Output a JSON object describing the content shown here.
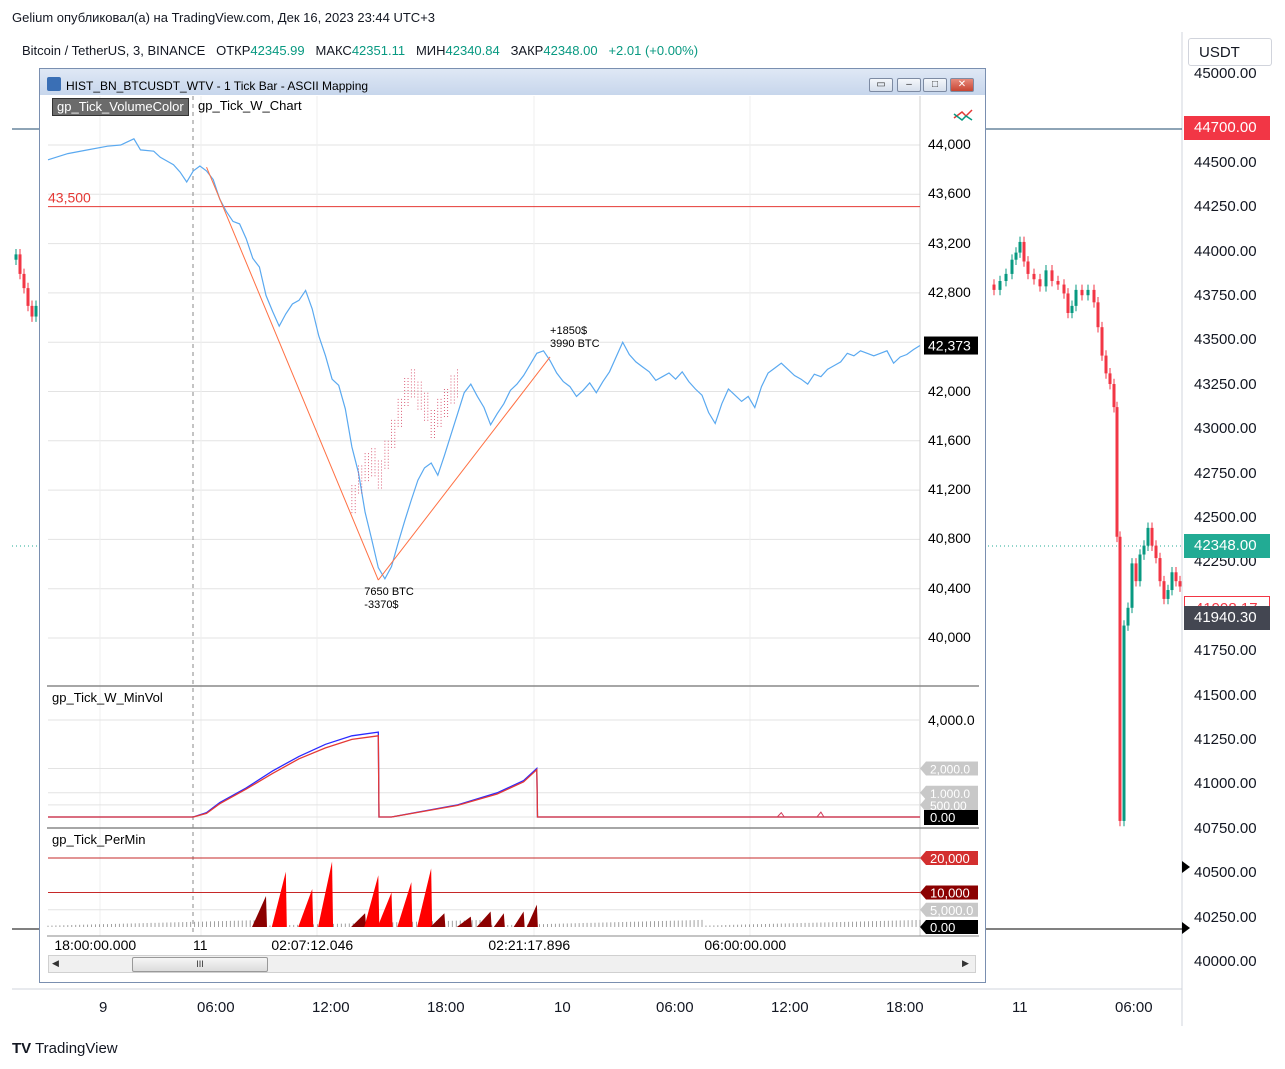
{
  "header": {
    "published": "Gelium опубликовал(а) на TradingView.com, Дек 16, 2023 23:44 UTC+3",
    "symbol": "Bitcoin / TetherUS, 3, BINANCE",
    "open_label": "ОТКР",
    "open": "42345.99",
    "high_label": "МАКС",
    "high": "42351.11",
    "low_label": "МИН",
    "low": "42340.84",
    "close_label": "ЗАКР",
    "close": "42348.00",
    "change": "+2.01 (+0.00%)"
  },
  "currency": "USDT",
  "brand": "TradingView",
  "chart_data": [
    {
      "type": "candlestick",
      "title": "Bitcoin / TetherUS, 3, BINANCE",
      "y_ticks": [
        "45000.00",
        "44500.00",
        "44250.00",
        "44000.00",
        "43750.00",
        "43500.00",
        "43250.00",
        "43000.00",
        "42750.00",
        "42500.00",
        "42250.00",
        "41750.00",
        "41500.00",
        "41250.00",
        "41000.00",
        "40750.00",
        "40500.00",
        "40250.00",
        "40000.00"
      ],
      "x_ticks": [
        "9",
        "06:00",
        "12:00",
        "18:00",
        "10",
        "06:00",
        "12:00",
        "18:00",
        "11",
        "06:00"
      ],
      "price_badges": [
        {
          "value": "44700.00",
          "color": "#f23645"
        },
        {
          "value": "42348.00",
          "color": "#22ab94"
        },
        {
          "value": "41998.17",
          "color": "#f23645",
          "style": "outline"
        },
        {
          "value": "41940.30",
          "color": "#434651"
        }
      ],
      "ylim": [
        40000,
        45000
      ],
      "visible_segments": "left of and right of the indicator window"
    },
    {
      "type": "line",
      "window_title": "HIST_BN_BTCUSDT_WTV - 1 Tick Bar - ASCII Mapping",
      "legend": [
        "gp_Tick_VolumeColor",
        "gp_Tick_W_Chart"
      ],
      "y_ticks": [
        "44,000",
        "43,600",
        "43,200",
        "42,800",
        "42,000",
        "41,600",
        "41,200",
        "40,800",
        "40,400",
        "40,000"
      ],
      "ylim": [
        39800,
        44300
      ],
      "last_price": "42,373",
      "hline": {
        "value": 43500,
        "label": "43,500",
        "color": "#e53935"
      },
      "x_ticks": [
        "18:00:00.000",
        "11",
        "02:07:12.046",
        "02:21:17.896",
        "06:00:00.000"
      ],
      "price_path": [
        [
          0,
          43880
        ],
        [
          3,
          43930
        ],
        [
          6,
          43960
        ],
        [
          9,
          43990
        ],
        [
          11,
          44000
        ],
        [
          13,
          44050
        ],
        [
          14,
          43960
        ],
        [
          16,
          43950
        ],
        [
          17,
          43900
        ],
        [
          18,
          43870
        ],
        [
          19,
          43840
        ],
        [
          20,
          43780
        ],
        [
          21,
          43700
        ],
        [
          22,
          43790
        ],
        [
          23,
          43830
        ],
        [
          24,
          43790
        ],
        [
          25,
          43720
        ],
        [
          26,
          43560
        ],
        [
          27,
          43460
        ],
        [
          28,
          43380
        ],
        [
          29,
          43360
        ],
        [
          30,
          43240
        ],
        [
          31,
          43080
        ],
        [
          32,
          43010
        ],
        [
          33,
          42780
        ],
        [
          34,
          42650
        ],
        [
          35,
          42530
        ],
        [
          36,
          42630
        ],
        [
          37,
          42710
        ],
        [
          38,
          42740
        ],
        [
          39,
          42820
        ],
        [
          40,
          42670
        ],
        [
          41,
          42450
        ],
        [
          42,
          42290
        ],
        [
          43,
          42100
        ],
        [
          44,
          42050
        ],
        [
          45,
          41860
        ],
        [
          46,
          41550
        ],
        [
          47,
          41340
        ],
        [
          48,
          41020
        ],
        [
          49,
          40800
        ],
        [
          50,
          40570
        ],
        [
          51,
          40480
        ],
        [
          52,
          40580
        ],
        [
          53,
          40770
        ],
        [
          54,
          40950
        ],
        [
          55,
          41120
        ],
        [
          56,
          41280
        ],
        [
          57,
          41380
        ],
        [
          58,
          41420
        ],
        [
          59,
          41320
        ],
        [
          60,
          41480
        ],
        [
          61,
          41650
        ],
        [
          62,
          41820
        ],
        [
          63,
          41990
        ],
        [
          64,
          42060
        ],
        [
          65,
          41960
        ],
        [
          66,
          41870
        ],
        [
          67,
          41730
        ],
        [
          68,
          41820
        ],
        [
          69,
          41900
        ],
        [
          70,
          42010
        ],
        [
          71,
          42060
        ],
        [
          72,
          42130
        ],
        [
          73,
          42220
        ],
        [
          74,
          42310
        ],
        [
          75,
          42330
        ],
        [
          76,
          42250
        ],
        [
          77,
          42150
        ],
        [
          78,
          42080
        ],
        [
          79,
          42040
        ],
        [
          80,
          41960
        ],
        [
          81,
          42010
        ],
        [
          82,
          42070
        ],
        [
          83,
          41990
        ],
        [
          84,
          42080
        ],
        [
          85,
          42160
        ],
        [
          86,
          42280
        ],
        [
          87,
          42400
        ],
        [
          88,
          42300
        ],
        [
          89,
          42240
        ],
        [
          90,
          42200
        ],
        [
          91,
          42160
        ],
        [
          92,
          42090
        ],
        [
          93,
          42120
        ],
        [
          94,
          42150
        ],
        [
          95,
          42100
        ],
        [
          96,
          42160
        ],
        [
          97,
          42080
        ],
        [
          98,
          42020
        ],
        [
          99,
          41970
        ],
        [
          100,
          41830
        ],
        [
          101,
          41740
        ],
        [
          102,
          41900
        ],
        [
          103,
          42020
        ],
        [
          104,
          41970
        ],
        [
          105,
          41920
        ],
        [
          106,
          41960
        ],
        [
          107,
          41870
        ],
        [
          108,
          42040
        ],
        [
          109,
          42150
        ],
        [
          110,
          42190
        ],
        [
          111,
          42230
        ],
        [
          112,
          42180
        ],
        [
          113,
          42130
        ],
        [
          114,
          42100
        ],
        [
          115,
          42060
        ],
        [
          116,
          42140
        ],
        [
          117,
          42120
        ],
        [
          118,
          42180
        ],
        [
          119,
          42210
        ],
        [
          120,
          42240
        ],
        [
          121,
          42310
        ],
        [
          122,
          42290
        ],
        [
          123,
          42330
        ],
        [
          124,
          42310
        ],
        [
          125,
          42290
        ],
        [
          126,
          42310
        ],
        [
          127,
          42330
        ],
        [
          128,
          42230
        ],
        [
          129,
          42280
        ],
        [
          130,
          42300
        ],
        [
          131,
          42340
        ],
        [
          132,
          42373
        ]
      ],
      "annotations": [
        {
          "text": "7650 BTC",
          "x": 50,
          "y": 40470,
          "placement": "below"
        },
        {
          "text": "-3370$",
          "x": 50,
          "y": 40470,
          "placement": "below2"
        },
        {
          "text": "+1850$",
          "x": 76,
          "y": 42280,
          "placement": "above2"
        },
        {
          "text": "3990 BTC",
          "x": 76,
          "y": 42280,
          "placement": "above"
        }
      ],
      "trend_lines": [
        {
          "x1": 24,
          "y1": 43820,
          "x2": 50,
          "y2": 40470
        },
        {
          "x1": 50,
          "y1": 40470,
          "x2": 76,
          "y2": 42280
        }
      ]
    },
    {
      "type": "line",
      "panel_title": "gp_Tick_W_MinVol",
      "y_ticks": [
        "4,000.0",
        "2,000.0",
        "1,000.0",
        "500.00",
        "0.00"
      ],
      "ylim": [
        0,
        4400
      ],
      "series": [
        {
          "name": "",
          "color": "#2a2aff",
          "values": [
            [
              0,
              0
            ],
            [
              22,
              0
            ],
            [
              24,
              180
            ],
            [
              26,
              600
            ],
            [
              30,
              1200
            ],
            [
              34,
              1900
            ],
            [
              38,
              2500
            ],
            [
              42,
              3000
            ],
            [
              46,
              3350
            ],
            [
              50,
              3500
            ],
            [
              50.1,
              0
            ],
            [
              52,
              0
            ],
            [
              56,
              200
            ],
            [
              62,
              500
            ],
            [
              68,
              1000
            ],
            [
              72,
              1500
            ],
            [
              74,
              2000
            ],
            [
              74.1,
              0
            ],
            [
              132,
              0
            ]
          ]
        },
        {
          "name": "",
          "color": "#e53935",
          "values": [
            [
              0,
              0
            ],
            [
              22,
              0
            ],
            [
              24,
              150
            ],
            [
              26,
              550
            ],
            [
              30,
              1150
            ],
            [
              34,
              1800
            ],
            [
              38,
              2400
            ],
            [
              42,
              2850
            ],
            [
              46,
              3200
            ],
            [
              50,
              3350
            ],
            [
              50.1,
              0
            ],
            [
              52,
              0
            ],
            [
              56,
              190
            ],
            [
              62,
              480
            ],
            [
              68,
              950
            ],
            [
              72,
              1450
            ],
            [
              74,
              1950
            ],
            [
              74.1,
              0
            ],
            [
              132,
              0
            ]
          ]
        }
      ]
    },
    {
      "type": "bar",
      "panel_title": "gp_Tick_PerMin",
      "y_ticks": [
        "20,000",
        "10,000",
        "5,000.0",
        "0.00"
      ],
      "ylim": [
        0,
        22000
      ],
      "hlines": [
        20000,
        10000
      ],
      "spikes": [
        [
          33,
          9000
        ],
        [
          36,
          16000
        ],
        [
          40,
          11000
        ],
        [
          43,
          19000
        ],
        [
          48,
          4000
        ],
        [
          50,
          15000
        ],
        [
          52,
          10000
        ],
        [
          55,
          13000
        ],
        [
          58,
          17000
        ],
        [
          60,
          4000
        ],
        [
          64,
          3000
        ],
        [
          67,
          4500
        ],
        [
          69,
          4000
        ],
        [
          72,
          4500
        ],
        [
          74,
          6500
        ]
      ]
    }
  ]
}
